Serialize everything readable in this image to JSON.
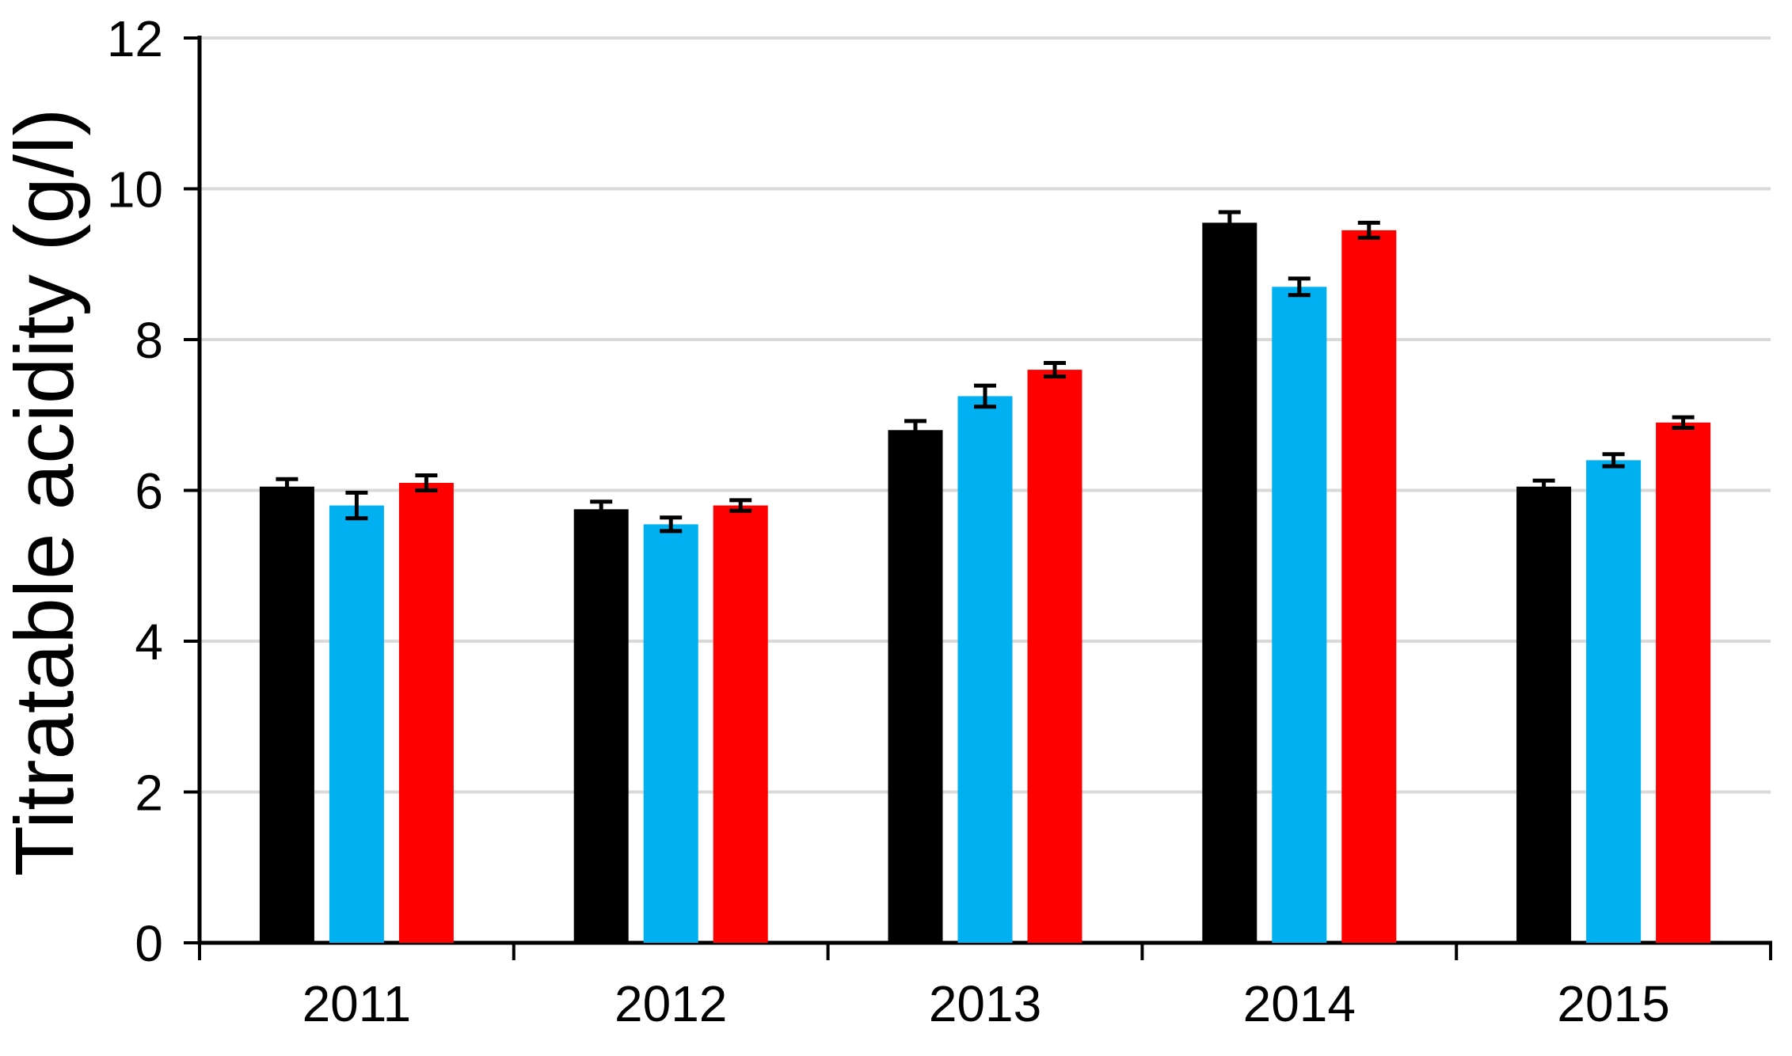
{
  "chart_data": {
    "type": "bar",
    "title": "",
    "xlabel": "",
    "ylabel": "Titratable acidity (g/l)",
    "ylim": [
      0,
      12
    ],
    "yticks": [
      0,
      2,
      4,
      6,
      8,
      10,
      12
    ],
    "grid": "horizontal",
    "legend": "none",
    "categories": [
      "2011",
      "2012",
      "2013",
      "2014",
      "2015"
    ],
    "series": [
      {
        "name": "black",
        "color": "#000000",
        "values": [
          6.05,
          5.75,
          6.8,
          9.55,
          6.05
        ],
        "errors": [
          0.1,
          0.1,
          0.12,
          0.14,
          0.08
        ]
      },
      {
        "name": "blue",
        "color": "#00B0F0",
        "values": [
          5.8,
          5.55,
          7.25,
          8.7,
          6.4
        ],
        "errors": [
          0.17,
          0.09,
          0.14,
          0.11,
          0.08
        ]
      },
      {
        "name": "red",
        "color": "#FF0000",
        "values": [
          6.1,
          5.8,
          7.6,
          9.45,
          6.9
        ],
        "errors": [
          0.1,
          0.07,
          0.09,
          0.1,
          0.07
        ]
      }
    ],
    "error_bar_color": "#000000",
    "gridline_color": "#D9D9D9",
    "axis_color": "#000000",
    "background_color": "#FFFFFF"
  }
}
